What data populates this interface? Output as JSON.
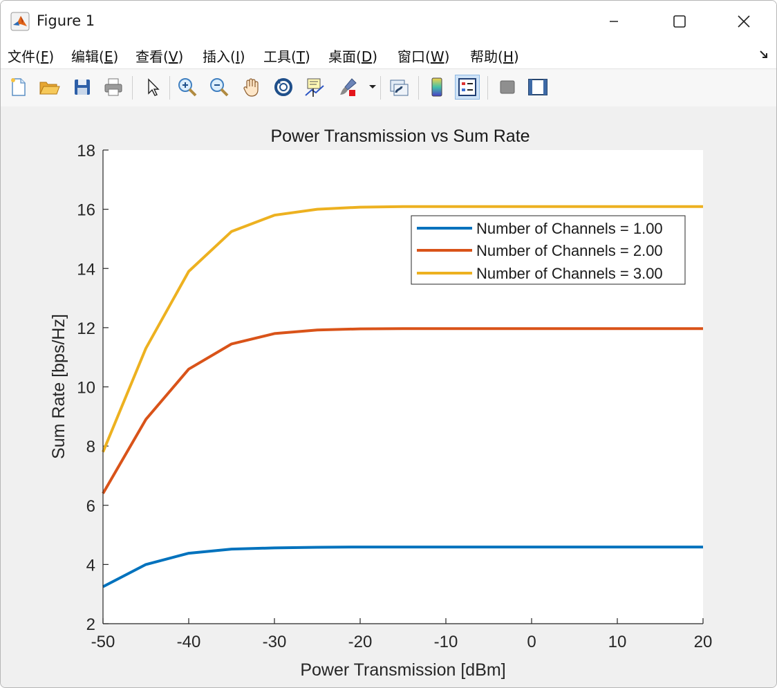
{
  "window": {
    "title": "Figure 1",
    "minimize_icon": "minimize-icon",
    "maximize_icon": "maximize-icon",
    "close_icon": "close-icon"
  },
  "menu": {
    "items": [
      {
        "label": "文件(",
        "key": "F",
        "tail": ")"
      },
      {
        "label": "编辑(",
        "key": "E",
        "tail": ")"
      },
      {
        "label": "查看(",
        "key": "V",
        "tail": ")"
      },
      {
        "label": "插入(",
        "key": "I",
        "tail": ")"
      },
      {
        "label": "工具(",
        "key": "T",
        "tail": ")"
      },
      {
        "label": "桌面(",
        "key": "D",
        "tail": ")"
      },
      {
        "label": "窗口(",
        "key": "W",
        "tail": ")"
      },
      {
        "label": "帮助(",
        "key": "H",
        "tail": ")"
      }
    ]
  },
  "toolbar": {
    "buttons": [
      "new-figure-icon",
      "open-folder-icon",
      "save-icon",
      "print-icon",
      "pointer-icon",
      "zoom-in-icon",
      "zoom-out-icon",
      "pan-hand-icon",
      "rotate-3d-icon",
      "data-cursor-icon",
      "brush-icon",
      "link-plot-icon",
      "colorbar-icon",
      "legend-icon",
      "hide-plot-tools-icon",
      "show-plot-tools-icon"
    ],
    "active": "legend-icon"
  },
  "chart_data": {
    "type": "line",
    "title": "Power Transmission vs Sum Rate",
    "xlabel": "Power Transmission [dBm]",
    "ylabel": "Sum Rate [bps/Hz]",
    "xlim": [
      -50,
      20
    ],
    "ylim": [
      2,
      18
    ],
    "xticks": [
      -50,
      -40,
      -30,
      -20,
      -10,
      0,
      10,
      20
    ],
    "yticks": [
      2,
      4,
      6,
      8,
      10,
      12,
      14,
      16,
      18
    ],
    "grid": false,
    "legend_position": "top-right",
    "x": [
      -50,
      -45,
      -40,
      -35,
      -30,
      -25,
      -20,
      -15,
      -10,
      -5,
      0,
      5,
      10,
      15,
      20
    ],
    "series": [
      {
        "name": "Number of Channels = 1.00",
        "color": "#0072BD",
        "values": [
          3.25,
          4.0,
          4.38,
          4.52,
          4.56,
          4.58,
          4.59,
          4.59,
          4.59,
          4.59,
          4.59,
          4.59,
          4.59,
          4.59,
          4.59
        ]
      },
      {
        "name": "Number of Channels = 2.00",
        "color": "#D95319",
        "values": [
          6.4,
          8.9,
          10.6,
          11.45,
          11.8,
          11.92,
          11.96,
          11.97,
          11.97,
          11.97,
          11.97,
          11.97,
          11.97,
          11.97,
          11.97
        ]
      },
      {
        "name": "Number of Channels = 3.00",
        "color": "#EDB120",
        "values": [
          7.8,
          11.3,
          13.9,
          15.25,
          15.8,
          16.0,
          16.07,
          16.09,
          16.09,
          16.09,
          16.09,
          16.09,
          16.09,
          16.09,
          16.09
        ]
      }
    ]
  }
}
